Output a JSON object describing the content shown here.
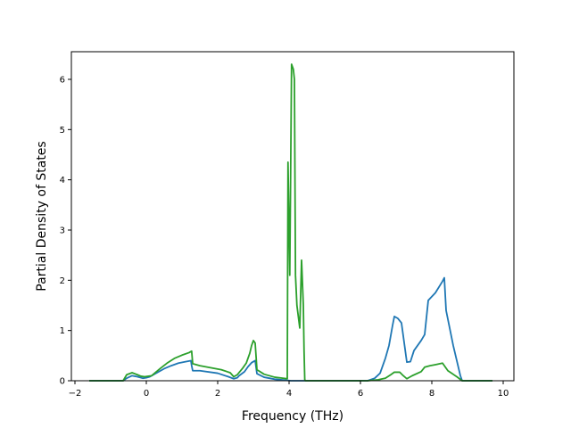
{
  "chart_data": {
    "type": "line",
    "title": "",
    "xlabel": "Frequency (THz)",
    "ylabel": "Partial Density of States",
    "xlim": [
      -2.1,
      10.3
    ],
    "ylim": [
      0,
      6.55
    ],
    "xticks": [
      -2,
      0,
      2,
      4,
      6,
      8,
      10
    ],
    "yticks": [
      0,
      1,
      2,
      3,
      4,
      5,
      6
    ],
    "grid": false,
    "legend": "none",
    "series": [
      {
        "color": "#1f77b4",
        "x": [
          -1.6,
          -0.65,
          -0.55,
          -0.4,
          -0.25,
          -0.1,
          0.0,
          0.1,
          0.2,
          0.35,
          0.5,
          0.7,
          0.9,
          1.1,
          1.25,
          1.27,
          1.3,
          1.5,
          2.0,
          2.3,
          2.45,
          2.55,
          2.6,
          2.75,
          2.85,
          2.95,
          3.05,
          3.1,
          3.3,
          3.6,
          3.9,
          4.05,
          6.2,
          6.4,
          6.55,
          6.7,
          6.8,
          6.9,
          6.95,
          7.05,
          7.15,
          7.3,
          7.4,
          7.5,
          7.6,
          7.7,
          7.8,
          7.9,
          8.1,
          8.3,
          8.35,
          8.4,
          8.5,
          8.6,
          8.7,
          8.8,
          8.85,
          9.7
        ],
        "y": [
          0,
          0,
          0.05,
          0.1,
          0.08,
          0.05,
          0.06,
          0.08,
          0.12,
          0.18,
          0.24,
          0.3,
          0.35,
          0.38,
          0.4,
          0.3,
          0.2,
          0.2,
          0.15,
          0.08,
          0.04,
          0.06,
          0.1,
          0.18,
          0.28,
          0.36,
          0.4,
          0.14,
          0.07,
          0.03,
          0.01,
          0,
          0,
          0.05,
          0.15,
          0.45,
          0.7,
          1.1,
          1.28,
          1.24,
          1.15,
          0.37,
          0.38,
          0.6,
          0.7,
          0.8,
          0.92,
          1.6,
          1.75,
          1.98,
          2.05,
          1.4,
          1.05,
          0.7,
          0.4,
          0.1,
          0,
          0
        ]
      },
      {
        "color": "#2ca02c",
        "x": [
          -1.6,
          -0.65,
          -0.55,
          -0.4,
          -0.25,
          -0.15,
          -0.05,
          0.15,
          0.25,
          0.4,
          0.6,
          0.8,
          1.0,
          1.2,
          1.27,
          1.3,
          1.5,
          1.8,
          2.1,
          2.35,
          2.45,
          2.55,
          2.7,
          2.8,
          2.9,
          2.95,
          3.0,
          3.05,
          3.1,
          3.3,
          3.6,
          3.95,
          3.97,
          4.02,
          4.07,
          4.12,
          4.15,
          4.18,
          4.22,
          4.3,
          4.35,
          4.4,
          4.42,
          4.44,
          4.46,
          4.5,
          6.2,
          6.5,
          6.7,
          6.85,
          6.95,
          7.1,
          7.2,
          7.3,
          7.35,
          7.45,
          7.7,
          7.8,
          7.95,
          8.1,
          8.3,
          8.45,
          8.7,
          8.85,
          9.7
        ],
        "y": [
          0,
          0,
          0.12,
          0.16,
          0.12,
          0.09,
          0.08,
          0.1,
          0.16,
          0.25,
          0.36,
          0.45,
          0.51,
          0.56,
          0.59,
          0.34,
          0.3,
          0.26,
          0.22,
          0.16,
          0.08,
          0.12,
          0.25,
          0.35,
          0.55,
          0.7,
          0.8,
          0.75,
          0.22,
          0.13,
          0.07,
          0.04,
          4.35,
          2.1,
          6.3,
          6.2,
          6.0,
          2.1,
          1.5,
          1.05,
          2.4,
          1.5,
          0.6,
          0.02,
          0,
          0,
          0,
          0.02,
          0.05,
          0.12,
          0.17,
          0.17,
          0.1,
          0.04,
          0.06,
          0.1,
          0.18,
          0.27,
          0.3,
          0.32,
          0.35,
          0.2,
          0.08,
          0,
          0
        ]
      }
    ]
  }
}
